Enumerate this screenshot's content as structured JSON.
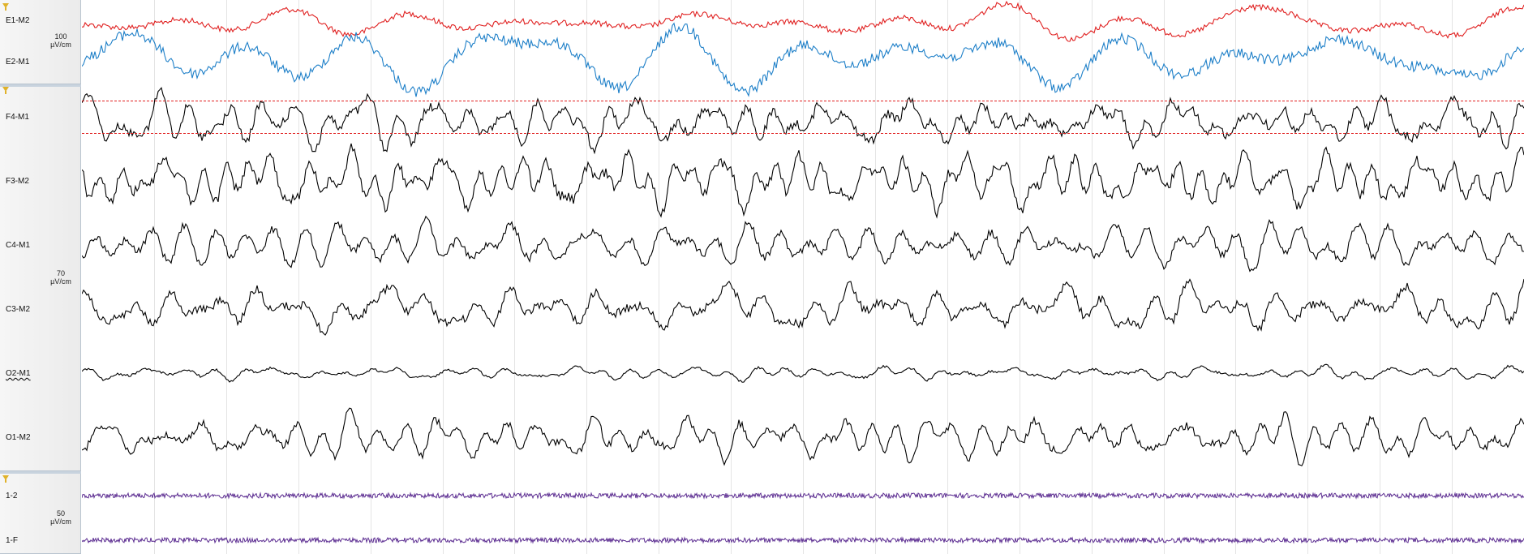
{
  "groups": [
    {
      "channels": [
        {
          "label": "E1-M2",
          "color": "#e02020"
        },
        {
          "label": "E2-M1",
          "color": "#1d7fc8"
        }
      ],
      "scale": {
        "value": "100",
        "unit": "µV/cm"
      }
    },
    {
      "channels": [
        {
          "label": "F4-M1",
          "color": "#000000"
        },
        {
          "label": "F3-M2",
          "color": "#000000"
        },
        {
          "label": "C4-M1",
          "color": "#000000"
        },
        {
          "label": "C3-M2",
          "color": "#000000"
        },
        {
          "label": "O2-M1",
          "color": "#000000",
          "flagged": true
        },
        {
          "label": "O1-M2",
          "color": "#000000"
        }
      ],
      "scale": {
        "value": "70",
        "unit": "µV/cm"
      }
    },
    {
      "channels": [
        {
          "label": "1-2",
          "color": "#5c2d91"
        },
        {
          "label": "1-F",
          "color": "#5c2d91"
        }
      ],
      "scale": {
        "value": "50",
        "unit": "µV/cm"
      }
    }
  ],
  "colors": {
    "grid_line": "#e4e4e4",
    "threshold_line": "#e02020",
    "panel_border": "#b9c4cf"
  },
  "icons": {
    "group_filter": "filter-funnel-icon"
  }
}
